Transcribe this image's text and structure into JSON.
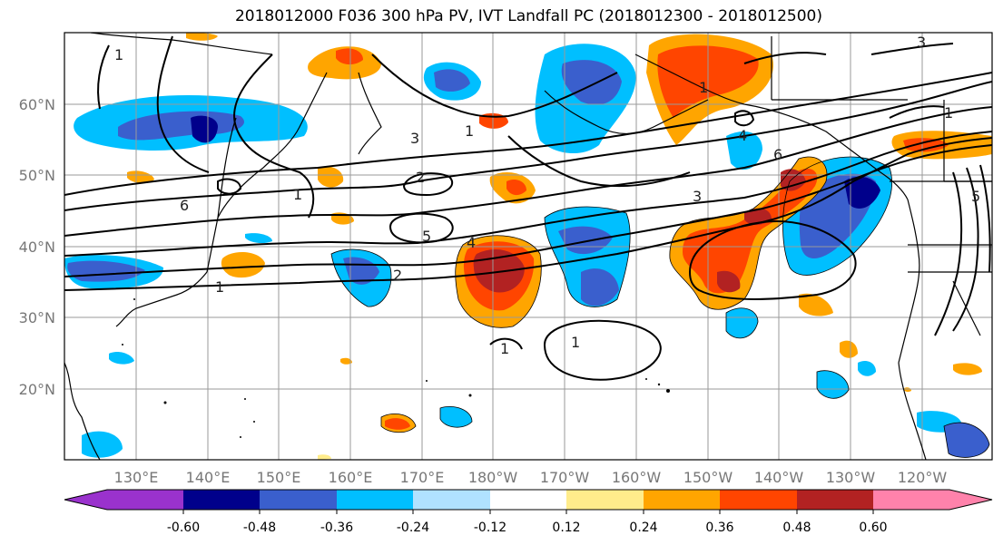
{
  "title": "2018012000 F036 300 hPa PV, IVT Landfall PC (2018012300 - 2018012500)",
  "map": {
    "lat_ticks": [
      "60°N",
      "50°N",
      "40°N",
      "30°N",
      "20°N"
    ],
    "lon_ticks": [
      "130°E",
      "140°E",
      "150°E",
      "160°E",
      "170°E",
      "180°W",
      "170°W",
      "160°W",
      "150°W",
      "140°W",
      "130°W",
      "120°W"
    ],
    "contour_labels": [
      "1",
      "3",
      "1",
      "2",
      "5",
      "4",
      "2",
      "1",
      "6",
      "1",
      "3",
      "6",
      "4",
      "1",
      "1",
      "1",
      "3",
      "1",
      "5"
    ],
    "gridline_color": "#9a9a9a",
    "coastline_color": "#000000",
    "contour_color": "#000000"
  },
  "colorbar": {
    "tick_labels": [
      "-0.60",
      "-0.48",
      "-0.36",
      "-0.24",
      "-0.12",
      "0.12",
      "0.24",
      "0.36",
      "0.48",
      "0.60"
    ],
    "colors": [
      "#9a32cd",
      "#00008b",
      "#3a5fcd",
      "#00bfff",
      "#b0e2ff",
      "#ffffff",
      "#ffec8b",
      "#ffa500",
      "#ff4500",
      "#b22222",
      "#ff82ab"
    ],
    "extend": "both"
  }
}
